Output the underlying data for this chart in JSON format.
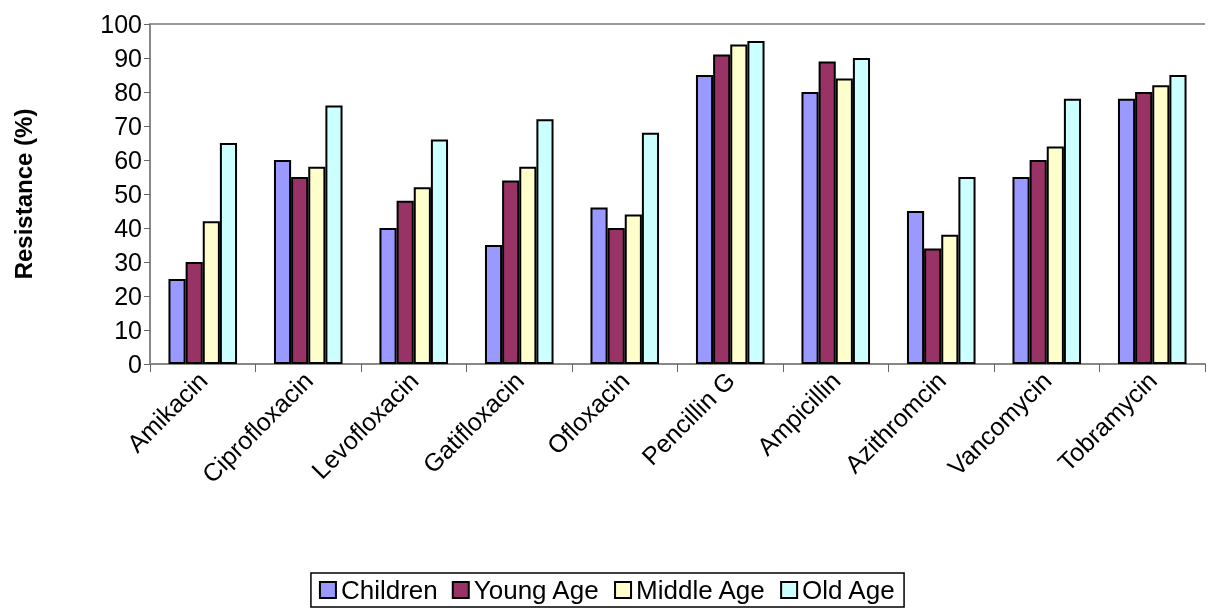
{
  "chart_data": {
    "type": "bar",
    "ylabel": "Resistance (%)",
    "categories": [
      "Amikacin",
      "Ciprofloxacin",
      "Levofloxacin",
      "Gatifloxacin",
      "Ofloxacin",
      "Pencillin G",
      "Ampicillin",
      "Azithromcin",
      "Vancomycin",
      "Tobramycin"
    ],
    "series": [
      {
        "name": "Children",
        "color": "#9999ff",
        "values": [
          25,
          60,
          40,
          35,
          46,
          85,
          80,
          45,
          55,
          78
        ]
      },
      {
        "name": "Young Age",
        "color": "#993366",
        "values": [
          30,
          55,
          48,
          54,
          40,
          91,
          89,
          34,
          60,
          80
        ]
      },
      {
        "name": "Middle Age",
        "color": "#ffffcc",
        "values": [
          42,
          58,
          52,
          58,
          44,
          94,
          84,
          38,
          64,
          82
        ]
      },
      {
        "name": "Old Age",
        "color": "#ccffff",
        "values": [
          65,
          76,
          66,
          72,
          68,
          95,
          90,
          55,
          78,
          85
        ]
      }
    ],
    "ylim": [
      0,
      100
    ],
    "yticks": [
      0,
      10,
      20,
      30,
      40,
      50,
      60,
      70,
      80,
      90,
      100
    ],
    "grid": false,
    "legend": "bottom"
  }
}
